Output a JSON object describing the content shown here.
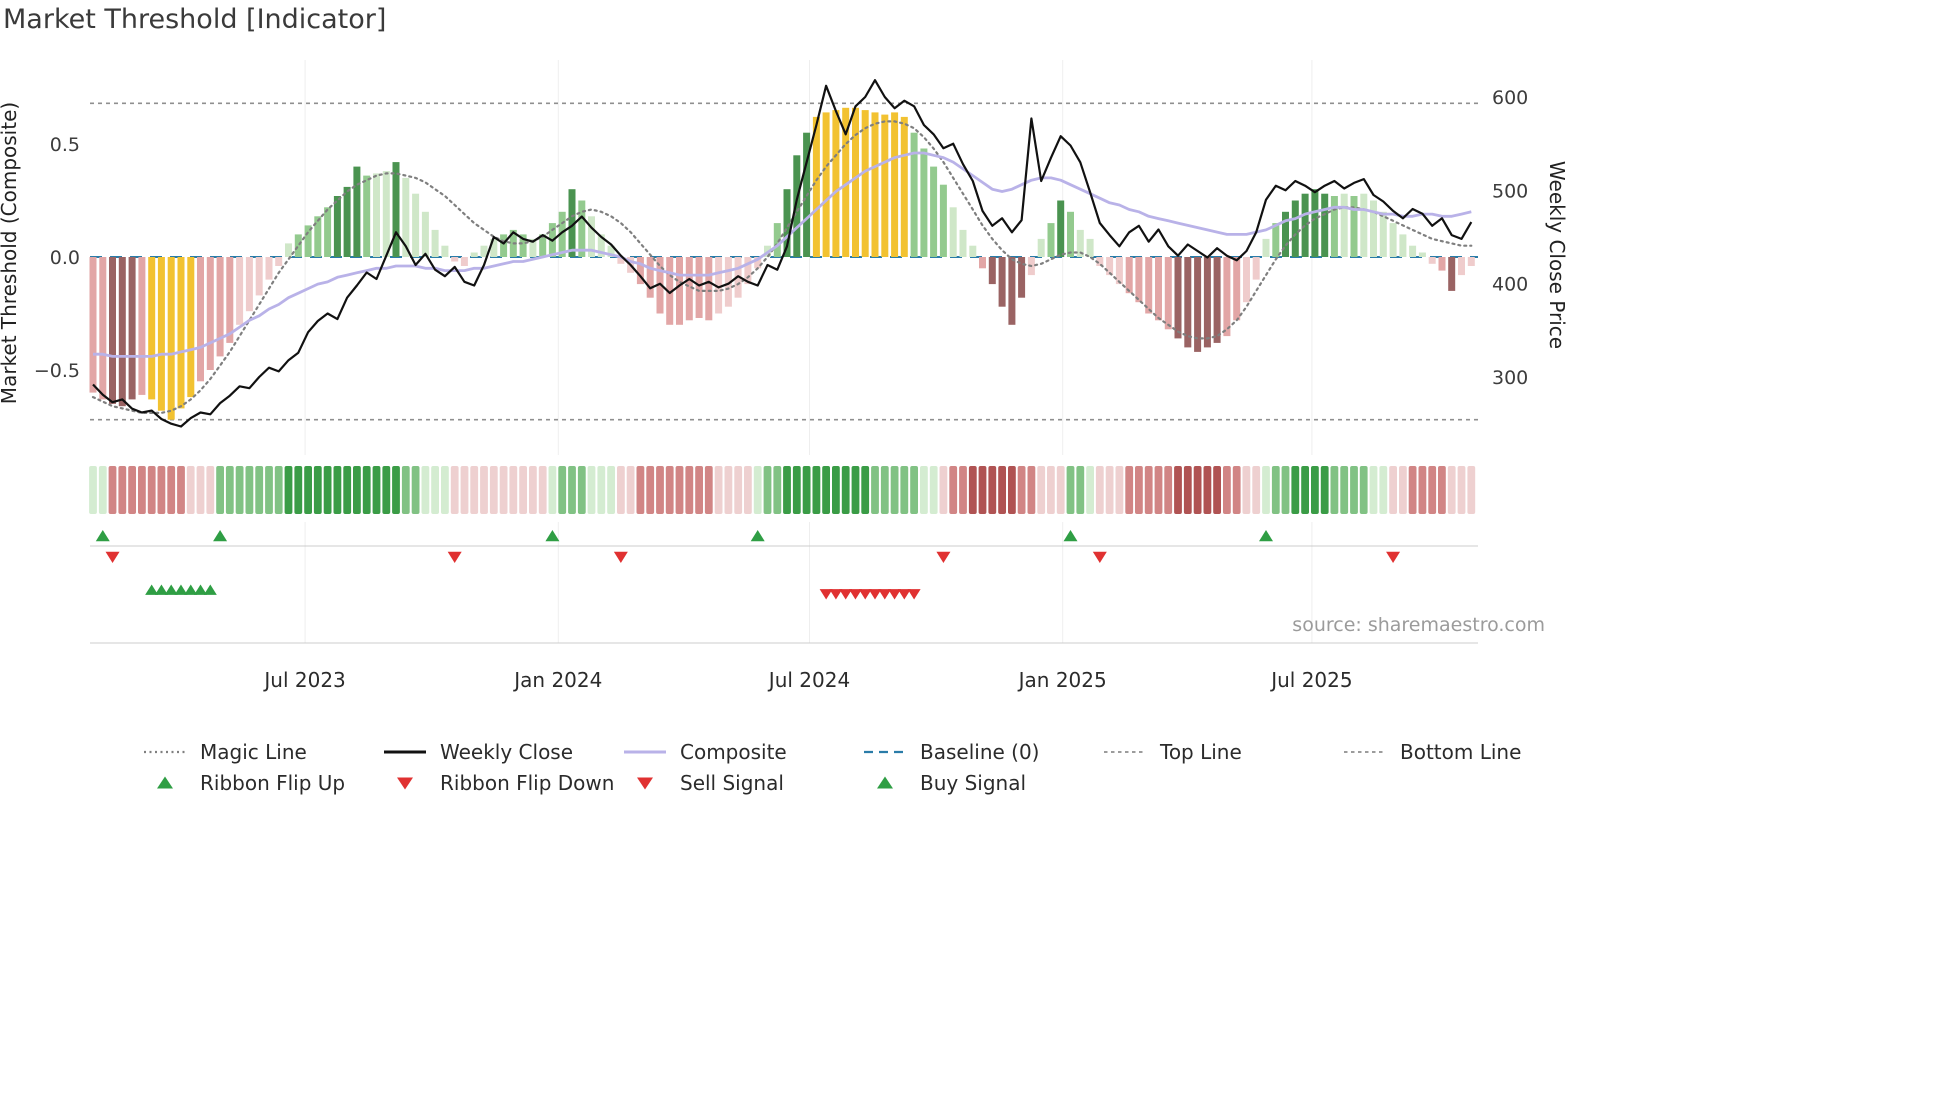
{
  "title": "Market Threshold [Indicator]",
  "source": "source: sharemaestro.com",
  "chart_data": {
    "type": "bar+line",
    "title": "Market Threshold [Indicator]",
    "n_points": 142,
    "x_axis": {
      "ticks": [
        {
          "label": "Jul 2023",
          "pos": 21.7
        },
        {
          "label": "Jan 2024",
          "pos": 47.6
        },
        {
          "label": "Jul 2024",
          "pos": 73.3
        },
        {
          "label": "Jan 2025",
          "pos": 99.2
        },
        {
          "label": "Jul 2025",
          "pos": 124.7
        }
      ]
    },
    "left_axis": {
      "label": "Market Threshold (Composite)",
      "range": [
        -0.87,
        0.87
      ],
      "ticks": [
        {
          "label": "0.5",
          "value": 0.5
        },
        {
          "label": "0.0",
          "value": 0.0
        },
        {
          "label": "−0.5",
          "value": -0.5
        }
      ]
    },
    "right_axis": {
      "label": "Weekly Close Price",
      "range": [
        216,
        640
      ],
      "ticks": [
        {
          "label": "600",
          "value": 600
        },
        {
          "label": "500",
          "value": 500
        },
        {
          "label": "400",
          "value": 400
        },
        {
          "label": "300",
          "value": 300
        }
      ]
    },
    "reference_lines": {
      "top_line": 0.68,
      "baseline": 0,
      "bottom_line": -0.72
    },
    "palette": {
      "bar": {
        "Y": "#f2c231",
        "nb": "#9a6363",
        "n2": "#e2a6a6",
        "n1": "#efcccc",
        "g1": "#cfe7c8",
        "g2": "#93ca8e",
        "g3": "#4a9350"
      },
      "ribbon": {
        "R3": "#b05353",
        "R2": "#d18585",
        "R1": "#eed0d0",
        "G1": "#d4ecd1",
        "G2": "#81c284",
        "G3": "#3a9c46"
      },
      "lines": {
        "magic": "#7f7f7f",
        "weekly_close": "#111111",
        "composite": "#b9b2e8",
        "baseline": "#2a7ca8",
        "top_bottom": "#8f8f8f"
      },
      "signals": {
        "up": "#2f9e44",
        "down": "#e03131"
      }
    },
    "series": {
      "threshold_bars": {
        "values": [
          -0.6,
          -0.63,
          -0.65,
          -0.66,
          -0.63,
          -0.61,
          -0.63,
          -0.68,
          -0.72,
          -0.67,
          -0.62,
          -0.55,
          -0.5,
          -0.44,
          -0.38,
          -0.3,
          -0.24,
          -0.17,
          -0.1,
          -0.04,
          0.06,
          0.1,
          0.14,
          0.18,
          0.22,
          0.27,
          0.31,
          0.4,
          0.36,
          0.37,
          0.38,
          0.42,
          0.35,
          0.28,
          0.2,
          0.12,
          0.05,
          -0.02,
          -0.04,
          0.02,
          0.05,
          0.08,
          0.1,
          0.12,
          0.1,
          0.08,
          0.1,
          0.15,
          0.2,
          0.3,
          0.25,
          0.18,
          0.1,
          0.05,
          -0.03,
          -0.07,
          -0.12,
          -0.18,
          -0.25,
          -0.3,
          -0.3,
          -0.28,
          -0.27,
          -0.28,
          -0.25,
          -0.22,
          -0.18,
          -0.12,
          -0.05,
          0.05,
          0.15,
          0.3,
          0.45,
          0.55,
          0.62,
          0.64,
          0.65,
          0.66,
          0.66,
          0.65,
          0.64,
          0.63,
          0.64,
          0.62,
          0.55,
          0.48,
          0.4,
          0.32,
          0.22,
          0.12,
          0.05,
          -0.05,
          -0.12,
          -0.22,
          -0.3,
          -0.18,
          -0.08,
          0.08,
          0.15,
          0.25,
          0.2,
          0.12,
          0.08,
          -0.04,
          -0.08,
          -0.12,
          -0.16,
          -0.2,
          -0.25,
          -0.28,
          -0.32,
          -0.36,
          -0.4,
          -0.42,
          -0.4,
          -0.38,
          -0.35,
          -0.28,
          -0.2,
          -0.1,
          0.08,
          0.15,
          0.2,
          0.25,
          0.28,
          0.3,
          0.28,
          0.27,
          0.28,
          0.27,
          0.28,
          0.25,
          0.2,
          0.15,
          0.1,
          0.05,
          0.02,
          -0.03,
          -0.06,
          -0.15,
          -0.08,
          -0.04
        ],
        "colors": [
          "n2",
          "n2",
          "nb",
          "nb",
          "nb",
          "n2",
          "Y",
          "Y",
          "Y",
          "Y",
          "Y",
          "n2",
          "n2",
          "n2",
          "n2",
          "n1",
          "n1",
          "n1",
          "n1",
          "n1",
          "g1",
          "g2",
          "g2",
          "g2",
          "g2",
          "g3",
          "g3",
          "g3",
          "g2",
          "g1",
          "g1",
          "g3",
          "g1",
          "g1",
          "g1",
          "g1",
          "g1",
          "n1",
          "n1",
          "g1",
          "g1",
          "g1",
          "g2",
          "g2",
          "g2",
          "g1",
          "g2",
          "g2",
          "g2",
          "g3",
          "g2",
          "g1",
          "g1",
          "g1",
          "n1",
          "n1",
          "n2",
          "n2",
          "n2",
          "n2",
          "n2",
          "n2",
          "n2",
          "n2",
          "n1",
          "n1",
          "n1",
          "n1",
          "n1",
          "g1",
          "g2",
          "g3",
          "g3",
          "g3",
          "Y",
          "Y",
          "Y",
          "Y",
          "Y",
          "Y",
          "Y",
          "Y",
          "Y",
          "Y",
          "g2",
          "g2",
          "g2",
          "g2",
          "g1",
          "g1",
          "g1",
          "n2",
          "nb",
          "nb",
          "nb",
          "nb",
          "n1",
          "g1",
          "g2",
          "g3",
          "g2",
          "g1",
          "g1",
          "n1",
          "n1",
          "n1",
          "n2",
          "n2",
          "n2",
          "n2",
          "n2",
          "nb",
          "nb",
          "nb",
          "nb",
          "nb",
          "n2",
          "n2",
          "n1",
          "n1",
          "g1",
          "g2",
          "g3",
          "g3",
          "g3",
          "g3",
          "g3",
          "g2",
          "g1",
          "g2",
          "g1",
          "g1",
          "g1",
          "g1",
          "g1",
          "g1",
          "g1",
          "n1",
          "n2",
          "nb",
          "n1",
          "n1"
        ]
      },
      "weekly_close": [
        292,
        281,
        273,
        276,
        266,
        262,
        264,
        255,
        250,
        247,
        256,
        262,
        260,
        272,
        280,
        290,
        288,
        300,
        310,
        306,
        318,
        326,
        348,
        360,
        368,
        362,
        385,
        398,
        412,
        405,
        430,
        455,
        440,
        420,
        432,
        415,
        408,
        418,
        402,
        398,
        420,
        450,
        443,
        455,
        448,
        445,
        452,
        446,
        455,
        462,
        472,
        460,
        450,
        442,
        430,
        420,
        408,
        395,
        400,
        390,
        398,
        405,
        398,
        402,
        396,
        400,
        408,
        402,
        398,
        420,
        415,
        440,
        490,
        530,
        570,
        612,
        585,
        560,
        590,
        600,
        618,
        600,
        588,
        596,
        590,
        570,
        560,
        545,
        550,
        528,
        510,
        478,
        462,
        470,
        455,
        468,
        577,
        510,
        535,
        558,
        548,
        530,
        498,
        465,
        452,
        440,
        455,
        462,
        445,
        458,
        440,
        430,
        442,
        435,
        428,
        438,
        430,
        425,
        435,
        455,
        490,
        505,
        500,
        510,
        505,
        498,
        505,
        510,
        502,
        508,
        512,
        495,
        488,
        478,
        470,
        480,
        475,
        462,
        470,
        452,
        448,
        466
      ],
      "composite": [
        -0.43,
        -0.43,
        -0.44,
        -0.44,
        -0.44,
        -0.44,
        -0.44,
        -0.43,
        -0.43,
        -0.42,
        -0.41,
        -0.4,
        -0.38,
        -0.36,
        -0.34,
        -0.31,
        -0.28,
        -0.26,
        -0.23,
        -0.21,
        -0.18,
        -0.16,
        -0.14,
        -0.12,
        -0.11,
        -0.09,
        -0.08,
        -0.07,
        -0.06,
        -0.05,
        -0.05,
        -0.04,
        -0.04,
        -0.04,
        -0.05,
        -0.05,
        -0.06,
        -0.06,
        -0.06,
        -0.05,
        -0.05,
        -0.04,
        -0.03,
        -0.02,
        -0.02,
        -0.01,
        0.0,
        0.01,
        0.02,
        0.03,
        0.03,
        0.03,
        0.02,
        0.01,
        0.0,
        -0.02,
        -0.03,
        -0.05,
        -0.06,
        -0.07,
        -0.08,
        -0.08,
        -0.08,
        -0.08,
        -0.07,
        -0.06,
        -0.05,
        -0.03,
        -0.01,
        0.02,
        0.05,
        0.09,
        0.13,
        0.17,
        0.21,
        0.25,
        0.29,
        0.32,
        0.35,
        0.38,
        0.4,
        0.42,
        0.44,
        0.45,
        0.46,
        0.46,
        0.45,
        0.44,
        0.42,
        0.39,
        0.36,
        0.33,
        0.3,
        0.29,
        0.3,
        0.32,
        0.34,
        0.35,
        0.35,
        0.34,
        0.32,
        0.3,
        0.28,
        0.26,
        0.24,
        0.23,
        0.21,
        0.2,
        0.18,
        0.17,
        0.16,
        0.15,
        0.14,
        0.13,
        0.12,
        0.11,
        0.1,
        0.1,
        0.1,
        0.11,
        0.12,
        0.14,
        0.16,
        0.17,
        0.19,
        0.2,
        0.21,
        0.22,
        0.22,
        0.21,
        0.21,
        0.2,
        0.19,
        0.19,
        0.18,
        0.18,
        0.19,
        0.19,
        0.18,
        0.18,
        0.19,
        0.2
      ],
      "magic_line": [
        -0.62,
        -0.64,
        -0.66,
        -0.67,
        -0.68,
        -0.69,
        -0.69,
        -0.69,
        -0.68,
        -0.66,
        -0.63,
        -0.59,
        -0.54,
        -0.48,
        -0.42,
        -0.35,
        -0.28,
        -0.21,
        -0.14,
        -0.07,
        -0.01,
        0.05,
        0.11,
        0.16,
        0.21,
        0.25,
        0.29,
        0.32,
        0.34,
        0.36,
        0.37,
        0.37,
        0.36,
        0.35,
        0.33,
        0.3,
        0.27,
        0.23,
        0.19,
        0.15,
        0.12,
        0.09,
        0.07,
        0.06,
        0.06,
        0.07,
        0.09,
        0.12,
        0.15,
        0.18,
        0.2,
        0.21,
        0.2,
        0.18,
        0.15,
        0.11,
        0.06,
        0.01,
        -0.04,
        -0.08,
        -0.11,
        -0.13,
        -0.15,
        -0.15,
        -0.15,
        -0.14,
        -0.12,
        -0.09,
        -0.05,
        0.0,
        0.06,
        0.13,
        0.2,
        0.27,
        0.34,
        0.4,
        0.45,
        0.5,
        0.54,
        0.57,
        0.59,
        0.6,
        0.6,
        0.59,
        0.57,
        0.53,
        0.48,
        0.42,
        0.35,
        0.28,
        0.21,
        0.14,
        0.08,
        0.03,
        -0.01,
        -0.03,
        -0.04,
        -0.03,
        -0.01,
        0.01,
        0.02,
        0.02,
        0.0,
        -0.03,
        -0.07,
        -0.11,
        -0.15,
        -0.19,
        -0.23,
        -0.27,
        -0.3,
        -0.33,
        -0.35,
        -0.36,
        -0.36,
        -0.35,
        -0.32,
        -0.28,
        -0.22,
        -0.15,
        -0.08,
        -0.01,
        0.05,
        0.1,
        0.14,
        0.17,
        0.19,
        0.21,
        0.22,
        0.22,
        0.21,
        0.2,
        0.18,
        0.16,
        0.14,
        0.12,
        0.1,
        0.08,
        0.07,
        0.06,
        0.05,
        0.05
      ],
      "ribbon": [
        "G1",
        "G1",
        "R2",
        "R2",
        "R2",
        "R2",
        "R2",
        "R2",
        "R2",
        "R2",
        "R1",
        "R1",
        "R1",
        "G2",
        "G2",
        "G2",
        "G2",
        "G2",
        "G2",
        "G2",
        "G3",
        "G3",
        "G3",
        "G3",
        "G3",
        "G3",
        "G3",
        "G3",
        "G3",
        "G3",
        "G3",
        "G3",
        "G2",
        "G2",
        "G1",
        "G1",
        "G1",
        "R1",
        "R1",
        "R1",
        "R1",
        "R1",
        "R1",
        "R1",
        "R1",
        "R1",
        "R1",
        "G1",
        "G2",
        "G2",
        "G2",
        "G1",
        "G1",
        "G1",
        "R1",
        "R1",
        "R2",
        "R2",
        "R2",
        "R2",
        "R2",
        "R2",
        "R2",
        "R2",
        "R1",
        "R1",
        "R1",
        "R1",
        "G1",
        "G2",
        "G2",
        "G3",
        "G3",
        "G3",
        "G3",
        "G3",
        "G3",
        "G3",
        "G3",
        "G3",
        "G2",
        "G2",
        "G2",
        "G2",
        "G2",
        "G1",
        "G1",
        "R1",
        "R2",
        "R2",
        "R3",
        "R3",
        "R3",
        "R3",
        "R3",
        "R2",
        "R2",
        "R1",
        "R1",
        "R1",
        "G2",
        "G2",
        "G1",
        "R1",
        "R1",
        "R1",
        "R2",
        "R2",
        "R2",
        "R2",
        "R2",
        "R3",
        "R3",
        "R3",
        "R3",
        "R3",
        "R2",
        "R2",
        "R1",
        "R1",
        "G1",
        "G2",
        "G2",
        "G3",
        "G3",
        "G3",
        "G3",
        "G2",
        "G2",
        "G2",
        "G2",
        "G1",
        "G1",
        "R1",
        "R1",
        "R2",
        "R2",
        "R2",
        "R2",
        "R1",
        "R1",
        "R1"
      ],
      "signals": {
        "ribbon_flip_up": [
          1,
          13,
          47,
          68,
          100,
          120
        ],
        "ribbon_flip_down": [
          2,
          37,
          54,
          87,
          103,
          133
        ],
        "buy": [
          6,
          7,
          8,
          9,
          10,
          11,
          12
        ],
        "sell": [
          75,
          76,
          77,
          78,
          79,
          80,
          81,
          82,
          83,
          84
        ]
      }
    }
  },
  "legend": {
    "rows": [
      [
        {
          "label": "Magic Line",
          "marker": "dotted-line",
          "color": "#7f7f7f"
        },
        {
          "label": "Weekly Close",
          "marker": "solid-line",
          "color": "#111111"
        },
        {
          "label": "Composite",
          "marker": "solid-line",
          "color": "#b9b2e8"
        },
        {
          "label": "Baseline (0)",
          "marker": "dashed-line",
          "color": "#2a7ca8"
        },
        {
          "label": "Top Line",
          "marker": "fine-dashed-line",
          "color": "#8f8f8f"
        },
        {
          "label": "Bottom Line",
          "marker": "fine-dashed-line",
          "color": "#8f8f8f"
        }
      ],
      [
        {
          "label": "Ribbon Flip Up",
          "marker": "triangle-up",
          "color": "#2f9e44"
        },
        {
          "label": "Ribbon Flip Down",
          "marker": "triangle-down",
          "color": "#e03131"
        },
        {
          "label": "Sell Signal",
          "marker": "triangle-down",
          "color": "#e03131"
        },
        {
          "label": "Buy Signal",
          "marker": "triangle-up",
          "color": "#2f9e44"
        }
      ]
    ]
  }
}
